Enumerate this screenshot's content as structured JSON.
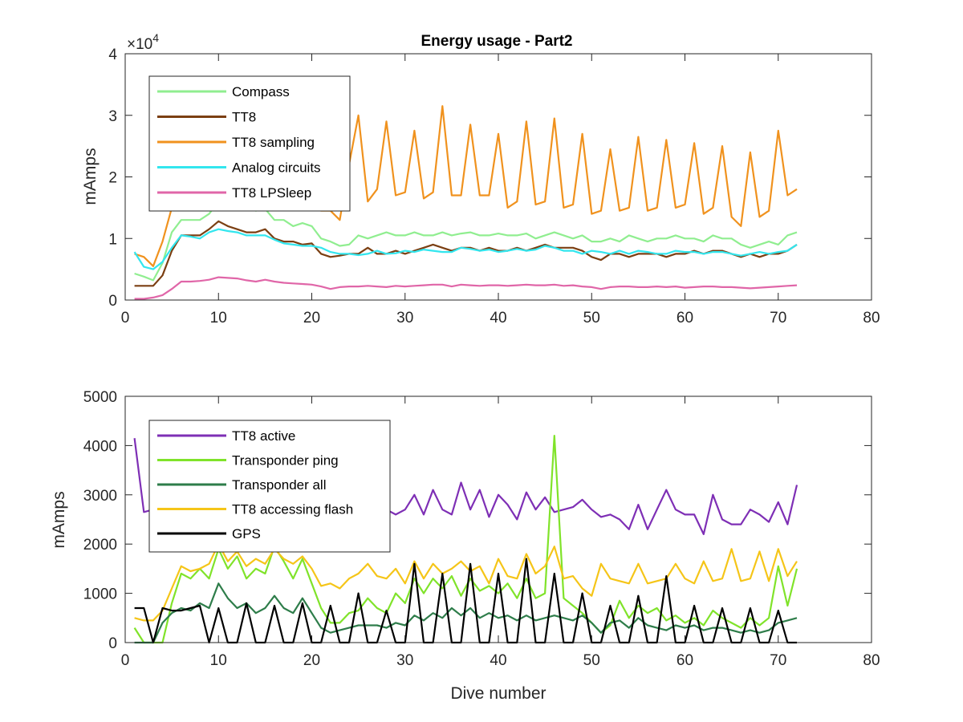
{
  "chart_data": [
    {
      "type": "line",
      "title": "Energy usage - Part2",
      "ylabel": "mAmps",
      "xlabel": "",
      "xlim": [
        0,
        80
      ],
      "ylim": [
        0,
        40000
      ],
      "xticks": [
        "0",
        "10",
        "20",
        "30",
        "40",
        "50",
        "60",
        "70",
        "80"
      ],
      "yticks": [
        "0",
        "1",
        "2",
        "3",
        "4"
      ],
      "y_exponent_label": "×10",
      "y_exponent_power": "4",
      "legend_position": "top-left",
      "grid": false,
      "x": [
        1,
        2,
        3,
        4,
        5,
        6,
        7,
        8,
        9,
        10,
        11,
        12,
        13,
        14,
        15,
        16,
        17,
        18,
        19,
        20,
        21,
        22,
        23,
        24,
        25,
        26,
        27,
        28,
        29,
        30,
        31,
        32,
        33,
        34,
        35,
        36,
        37,
        38,
        39,
        40,
        41,
        42,
        43,
        44,
        45,
        46,
        47,
        48,
        49,
        50,
        51,
        52,
        53,
        54,
        55,
        56,
        57,
        58,
        59,
        60,
        61,
        62,
        63,
        64,
        65,
        66,
        67,
        68,
        69,
        70,
        71,
        72
      ],
      "series": [
        {
          "name": "Compass",
          "color": "#90ee90",
          "values": [
            4300,
            3800,
            3200,
            6000,
            11000,
            13000,
            13000,
            13000,
            14000,
            16000,
            15000,
            15000,
            15000,
            14500,
            14800,
            13000,
            13000,
            12000,
            12500,
            12000,
            10000,
            9500,
            8800,
            9000,
            10500,
            10000,
            10500,
            11000,
            10500,
            10500,
            11000,
            10500,
            10500,
            11000,
            10500,
            10800,
            11000,
            10500,
            10500,
            10800,
            10500,
            10500,
            10800,
            10000,
            10500,
            11000,
            10500,
            10000,
            10500,
            9500,
            9500,
            10000,
            9500,
            10500,
            10000,
            9500,
            10000,
            10000,
            10500,
            10000,
            10000,
            9500,
            10500,
            10000,
            10000,
            9000,
            8500,
            9000,
            9500,
            9000,
            10500,
            11000
          ]
        },
        {
          "name": "TT8",
          "color": "#7b3f12",
          "values": [
            2300,
            2300,
            2300,
            4000,
            8000,
            10500,
            10500,
            10500,
            11500,
            12800,
            12000,
            11500,
            11000,
            11000,
            11500,
            10000,
            9500,
            9500,
            9000,
            9200,
            7500,
            7000,
            7200,
            7500,
            7500,
            8500,
            7500,
            7500,
            8000,
            7500,
            8000,
            8500,
            9000,
            8500,
            8000,
            8500,
            8500,
            8000,
            8500,
            8000,
            8000,
            8500,
            8000,
            8500,
            9000,
            8500,
            8500,
            8500,
            8000,
            7000,
            6500,
            7500,
            7500,
            7000,
            7500,
            7500,
            7500,
            7000,
            7500,
            7500,
            8000,
            7500,
            8000,
            8000,
            7500,
            7000,
            7500,
            7000,
            7500,
            7500,
            8000,
            9000
          ]
        },
        {
          "name": "TT8 sampling",
          "color": "#f0921e",
          "values": [
            7500,
            7000,
            5500,
            9500,
            15000,
            19000,
            21000,
            19000,
            19500,
            18000,
            17000,
            22000,
            19500,
            17500,
            17000,
            19000,
            20000,
            18500,
            18000,
            17500,
            14500,
            14500,
            13000,
            22000,
            30000,
            16000,
            18000,
            29000,
            17000,
            17500,
            27500,
            16500,
            17500,
            31500,
            17000,
            17000,
            28500,
            17000,
            17000,
            27000,
            15000,
            16000,
            29000,
            15500,
            16000,
            29500,
            15000,
            15500,
            27000,
            14000,
            14500,
            24500,
            14500,
            15000,
            26500,
            14500,
            15000,
            26000,
            15000,
            15500,
            25500,
            14000,
            15000,
            25000,
            13500,
            12000,
            24000,
            13500,
            14500,
            27500,
            17000,
            18000
          ]
        },
        {
          "name": "Analog circuits",
          "color": "#33e6ee",
          "values": [
            7800,
            5400,
            5000,
            6200,
            8500,
            10500,
            10300,
            10000,
            11000,
            11500,
            11200,
            11000,
            10500,
            10500,
            10500,
            9800,
            9200,
            9000,
            8800,
            8800,
            8500,
            7800,
            7500,
            7500,
            7300,
            7500,
            8000,
            7500,
            7600,
            8000,
            7800,
            8200,
            8000,
            7800,
            7800,
            8500,
            8300,
            8000,
            8200,
            7800,
            8000,
            8300,
            8000,
            8200,
            8800,
            8500,
            8000,
            8000,
            7500,
            8000,
            7800,
            7500,
            8000,
            7500,
            8000,
            7800,
            7500,
            7500,
            8000,
            7800,
            7800,
            7500,
            7800,
            7800,
            7500,
            7200,
            7500,
            7800,
            7500,
            7800,
            8000,
            9000
          ]
        },
        {
          "name": "TT8 LPSleep",
          "color": "#e066a8",
          "values": [
            200,
            200,
            400,
            800,
            1800,
            3000,
            3000,
            3100,
            3300,
            3700,
            3600,
            3500,
            3200,
            3000,
            3300,
            3000,
            2800,
            2700,
            2600,
            2500,
            2200,
            1800,
            2100,
            2200,
            2200,
            2300,
            2200,
            2100,
            2300,
            2200,
            2300,
            2400,
            2500,
            2500,
            2200,
            2500,
            2400,
            2300,
            2400,
            2400,
            2300,
            2400,
            2500,
            2400,
            2400,
            2500,
            2300,
            2400,
            2200,
            2100,
            1800,
            2100,
            2200,
            2200,
            2100,
            2100,
            2200,
            2100,
            2200,
            2000,
            2100,
            2200,
            2200,
            2100,
            2100,
            2000,
            1900,
            2000,
            2100,
            2200,
            2300,
            2400
          ]
        }
      ]
    },
    {
      "type": "line",
      "title": "",
      "ylabel": "mAmps",
      "xlabel": "Dive number",
      "xlim": [
        0,
        80
      ],
      "ylim": [
        0,
        5000
      ],
      "xticks": [
        "0",
        "10",
        "20",
        "30",
        "40",
        "50",
        "60",
        "70",
        "80"
      ],
      "yticks": [
        "0",
        "1000",
        "2000",
        "3000",
        "4000",
        "5000"
      ],
      "legend_position": "top-left",
      "grid": false,
      "x": [
        1,
        2,
        3,
        4,
        5,
        6,
        7,
        8,
        9,
        10,
        11,
        12,
        13,
        14,
        15,
        16,
        17,
        18,
        19,
        20,
        21,
        22,
        23,
        24,
        25,
        26,
        27,
        28,
        29,
        30,
        31,
        32,
        33,
        34,
        35,
        36,
        37,
        38,
        39,
        40,
        41,
        42,
        43,
        44,
        45,
        46,
        47,
        48,
        49,
        50,
        51,
        52,
        53,
        54,
        55,
        56,
        57,
        58,
        59,
        60,
        61,
        62,
        63,
        64,
        65,
        66,
        67,
        68,
        69,
        70,
        71,
        72
      ],
      "series": [
        {
          "name": "TT8 active",
          "color": "#7e2fb5",
          "values": [
            4150,
            2650,
            2700,
            2800,
            2900,
            3000,
            2950,
            3000,
            2900,
            3000,
            2950,
            2900,
            3000,
            2900,
            2900,
            2950,
            2800,
            2900,
            2800,
            2750,
            2700,
            2650,
            2700,
            2650,
            2700,
            2600,
            2650,
            2700,
            2600,
            2700,
            3000,
            2600,
            3100,
            2700,
            2600,
            3250,
            2700,
            3100,
            2550,
            3000,
            2800,
            2500,
            3050,
            2700,
            2950,
            2650,
            2700,
            2750,
            2900,
            2700,
            2550,
            2600,
            2500,
            2300,
            2800,
            2300,
            2700,
            3100,
            2700,
            2600,
            2600,
            2200,
            3000,
            2500,
            2400,
            2400,
            2700,
            2600,
            2450,
            2850,
            2400,
            3200
          ]
        },
        {
          "name": "Transponder ping",
          "color": "#80e32a",
          "values": [
            300,
            0,
            0,
            0,
            800,
            1400,
            1300,
            1500,
            1300,
            1900,
            1500,
            1750,
            1300,
            1500,
            1400,
            1950,
            1650,
            1300,
            1700,
            1200,
            700,
            400,
            400,
            600,
            650,
            900,
            700,
            600,
            1000,
            800,
            1300,
            1000,
            1300,
            1100,
            1350,
            950,
            1300,
            1050,
            1150,
            1000,
            1200,
            900,
            1300,
            900,
            1000,
            4200,
            900,
            750,
            600,
            400,
            200,
            350,
            850,
            500,
            750,
            600,
            700,
            450,
            550,
            400,
            500,
            350,
            650,
            500,
            400,
            300,
            500,
            350,
            500,
            1550,
            750,
            1500
          ]
        },
        {
          "name": "Transponder all",
          "color": "#2e7d4a",
          "values": [
            0,
            0,
            0,
            400,
            600,
            700,
            650,
            800,
            700,
            1200,
            900,
            700,
            800,
            600,
            700,
            950,
            700,
            600,
            900,
            600,
            300,
            200,
            250,
            300,
            350,
            350,
            350,
            300,
            400,
            350,
            550,
            450,
            600,
            500,
            700,
            550,
            700,
            500,
            600,
            500,
            550,
            450,
            550,
            450,
            500,
            550,
            500,
            450,
            550,
            400,
            200,
            400,
            450,
            300,
            500,
            350,
            300,
            250,
            350,
            300,
            350,
            250,
            300,
            300,
            250,
            200,
            250,
            200,
            250,
            400,
            450,
            500
          ]
        },
        {
          "name": "TT8 accessing flash",
          "color": "#f5c518",
          "values": [
            500,
            450,
            450,
            650,
            1100,
            1550,
            1450,
            1500,
            1600,
            2000,
            1650,
            1850,
            1550,
            1700,
            1600,
            1900,
            1700,
            1600,
            1750,
            1500,
            1150,
            1200,
            1100,
            1300,
            1400,
            1600,
            1350,
            1300,
            1500,
            1200,
            1650,
            1300,
            1600,
            1400,
            1500,
            1650,
            1450,
            1550,
            1200,
            1700,
            1350,
            1300,
            1800,
            1400,
            1550,
            1950,
            1300,
            1350,
            1100,
            950,
            1600,
            1300,
            1250,
            1200,
            1600,
            1200,
            1250,
            1300,
            1600,
            1300,
            1200,
            1650,
            1250,
            1300,
            1900,
            1250,
            1300,
            1850,
            1250,
            1900,
            1350,
            1650
          ]
        },
        {
          "name": "GPS",
          "color": "#000000",
          "values": [
            700,
            700,
            0,
            700,
            650,
            650,
            700,
            750,
            0,
            700,
            0,
            0,
            800,
            0,
            0,
            750,
            0,
            0,
            800,
            0,
            0,
            750,
            0,
            0,
            1000,
            0,
            0,
            650,
            0,
            0,
            1600,
            0,
            0,
            1400,
            0,
            0,
            1600,
            0,
            0,
            1400,
            0,
            0,
            1700,
            0,
            0,
            1400,
            0,
            0,
            1000,
            0,
            0,
            750,
            0,
            0,
            950,
            0,
            0,
            1350,
            0,
            0,
            750,
            0,
            0,
            700,
            0,
            0,
            700,
            0,
            0,
            650,
            0,
            0
          ]
        }
      ]
    }
  ]
}
